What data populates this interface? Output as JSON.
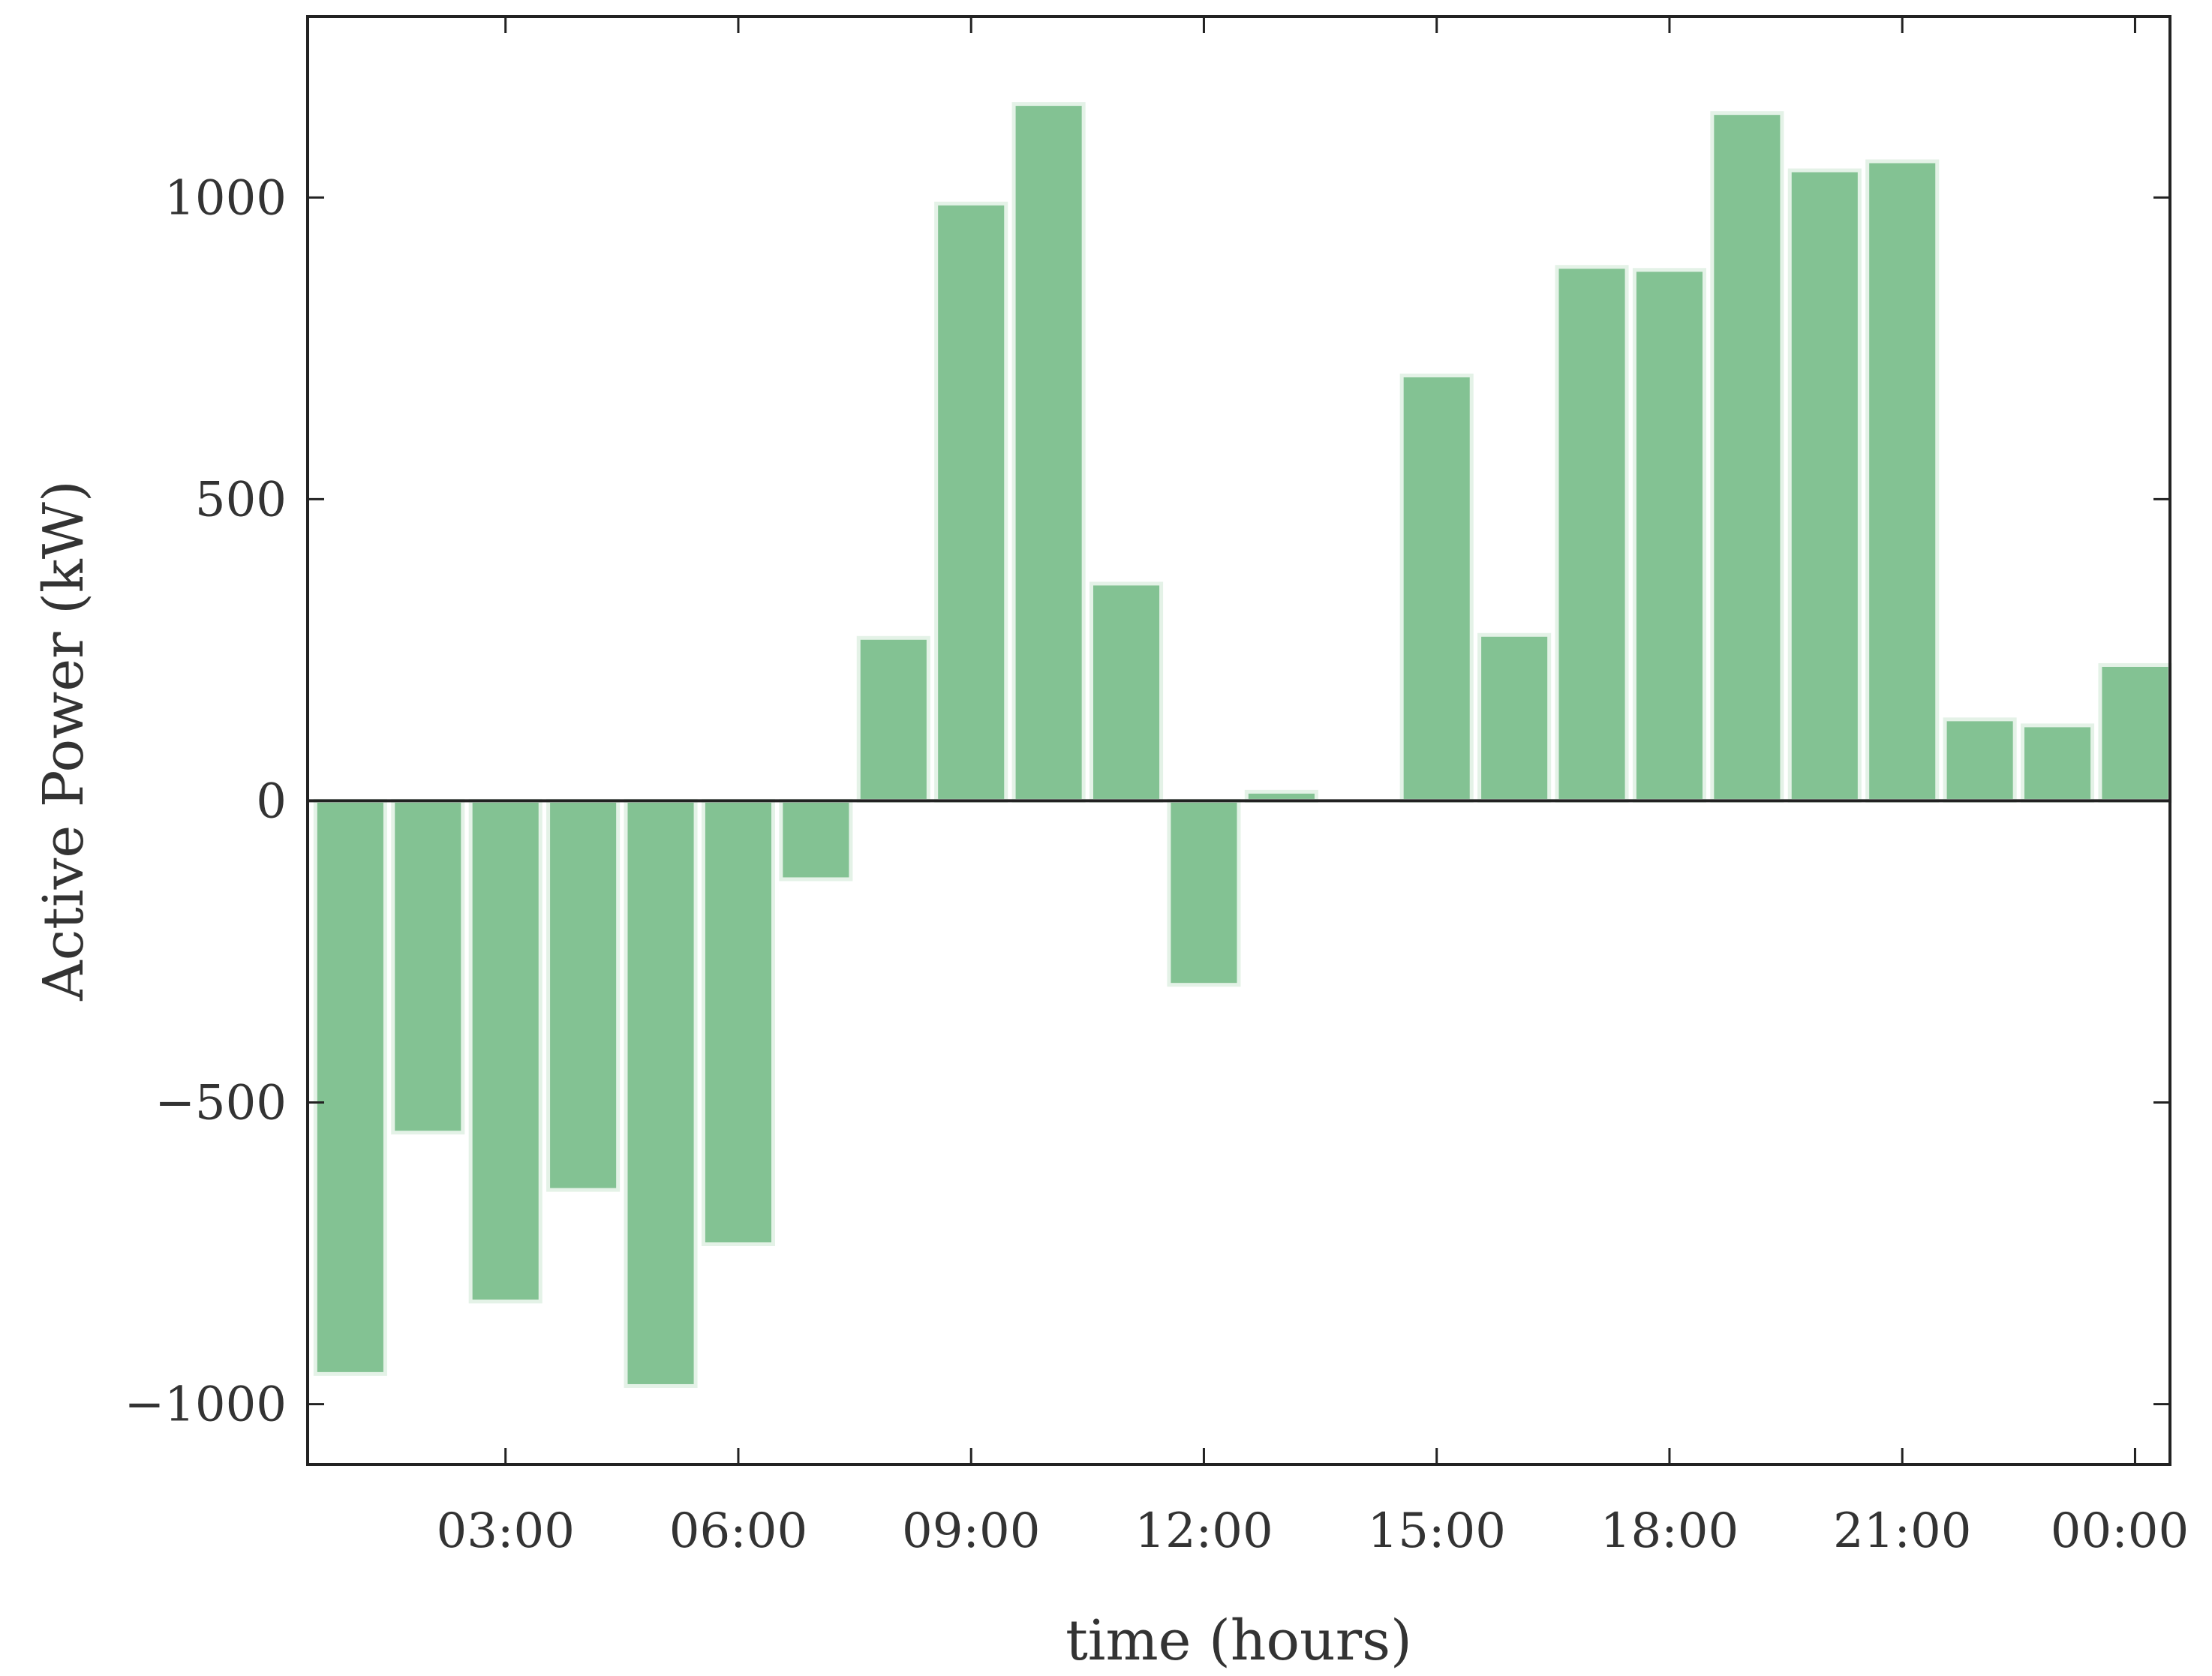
{
  "chart_data": {
    "type": "bar",
    "title": "",
    "xlabel": "time (hours)",
    "ylabel": "Active Power (kW)",
    "x_hours": [
      1,
      2,
      3,
      4,
      5,
      6,
      7,
      8,
      9,
      10,
      11,
      12,
      13,
      14,
      15,
      16,
      17,
      18,
      19,
      20,
      21,
      22,
      23,
      24
    ],
    "values": [
      -950,
      -550,
      -830,
      -645,
      -970,
      -735,
      -130,
      270,
      990,
      1155,
      360,
      -305,
      15,
      0,
      705,
      275,
      885,
      880,
      1140,
      1045,
      1060,
      135,
      125,
      225
    ],
    "xlim": [
      0.45,
      24.45
    ],
    "ylim": [
      -1100,
      1300
    ],
    "x_ticks": [
      {
        "hour": 3,
        "label": "03:00"
      },
      {
        "hour": 6,
        "label": "06:00"
      },
      {
        "hour": 9,
        "label": "09:00"
      },
      {
        "hour": 12,
        "label": "12:00"
      },
      {
        "hour": 15,
        "label": "15:00"
      },
      {
        "hour": 18,
        "label": "18:00"
      },
      {
        "hour": 21,
        "label": "21:00"
      },
      {
        "hour": 24,
        "label": "00:00"
      }
    ],
    "y_ticks": [
      {
        "value": 1000,
        "label": "1000"
      },
      {
        "value": 500,
        "label": "500"
      },
      {
        "value": 0,
        "label": "0"
      },
      {
        "value": -500,
        "label": "−500"
      },
      {
        "value": -1000,
        "label": "−1000"
      }
    ],
    "bar_color": "#83c293",
    "grid": false,
    "legend": "none"
  }
}
